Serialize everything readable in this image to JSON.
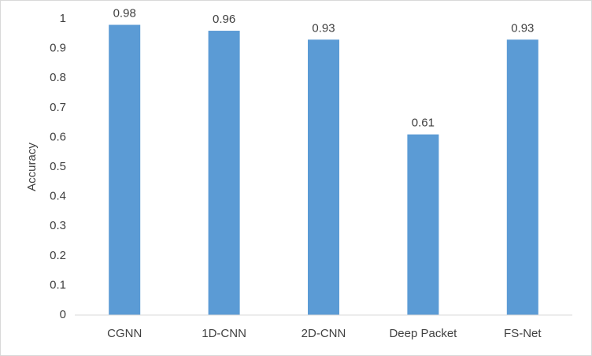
{
  "chart_data": {
    "type": "bar",
    "y_label": "Accuracy",
    "categories": [
      "CGNN",
      "1D-CNN",
      "2D-CNN",
      "Deep Packet",
      "FS-Net"
    ],
    "values": [
      0.98,
      0.96,
      0.93,
      0.61,
      0.93
    ],
    "color": "#5b9bd5",
    "ylim": [
      0,
      1
    ],
    "yticks": [
      0,
      0.1,
      0.2,
      0.3,
      0.4,
      0.5,
      0.6,
      0.7,
      0.8,
      0.9,
      1
    ],
    "grid": false
  }
}
